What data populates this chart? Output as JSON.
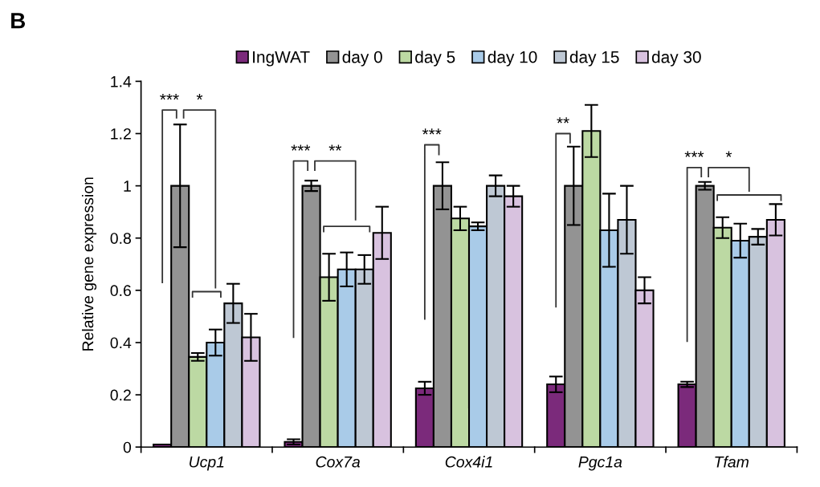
{
  "chart_data": {
    "type": "bar",
    "ylabel": "Relative gene expression",
    "categories": [
      "Ucp1",
      "Cox7a",
      "Cox4i1",
      "Pgc1a",
      "Tfam"
    ],
    "series": [
      {
        "name": "IngWAT",
        "color": "#7b2a7b",
        "values": [
          0.01,
          0.02,
          0.225,
          0.24,
          0.24
        ],
        "errors": [
          null,
          0.01,
          0.025,
          0.03,
          0.01
        ]
      },
      {
        "name": "day 0",
        "color": "#939393",
        "values": [
          1.0,
          1.0,
          1.0,
          1.0,
          1.0
        ],
        "errors": [
          0.235,
          0.02,
          0.09,
          0.15,
          0.015
        ]
      },
      {
        "name": "day 5",
        "color": "#bcd9a3",
        "values": [
          0.345,
          0.65,
          0.875,
          1.21,
          0.84
        ],
        "errors": [
          0.015,
          0.09,
          0.045,
          0.1,
          0.04
        ]
      },
      {
        "name": "day 10",
        "color": "#a9cbe8",
        "values": [
          0.4,
          0.68,
          0.845,
          0.83,
          0.79
        ],
        "errors": [
          0.05,
          0.065,
          0.015,
          0.14,
          0.065
        ]
      },
      {
        "name": "day 15",
        "color": "#bec8d4",
        "values": [
          0.55,
          0.68,
          1.0,
          0.87,
          0.805
        ],
        "errors": [
          0.075,
          0.055,
          0.04,
          0.13,
          0.03
        ]
      },
      {
        "name": "day 30",
        "color": "#d8c2df",
        "values": [
          0.42,
          0.82,
          0.96,
          0.6,
          0.87
        ],
        "errors": [
          0.09,
          0.1,
          0.04,
          0.05,
          0.06
        ]
      }
    ],
    "ylim": [
      0,
      1.4
    ],
    "yticks": [
      0,
      0.2,
      0.4,
      0.6,
      0.8,
      1,
      1.2,
      1.4
    ],
    "grid": false,
    "legend": "top",
    "annotations": [
      "B",
      "***",
      "*",
      "***",
      "**",
      "***",
      "**",
      "***",
      "*"
    ]
  }
}
